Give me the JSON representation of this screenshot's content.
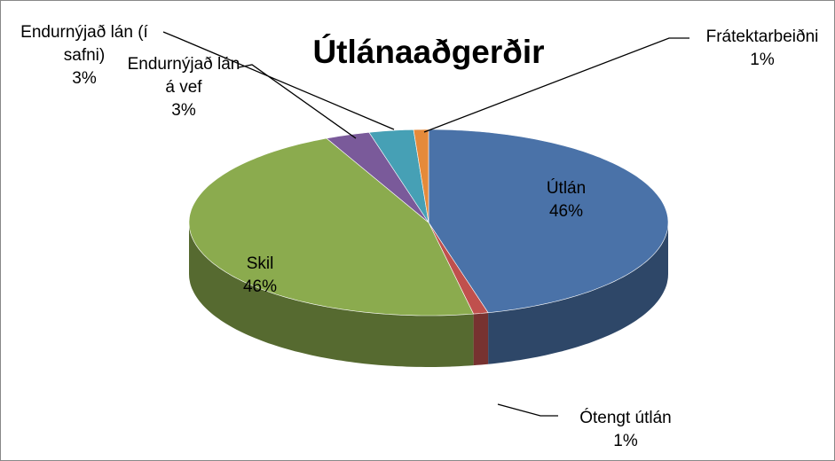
{
  "chart_data": {
    "type": "pie3d",
    "title": "Útlánaaðgerðir",
    "categories": [
      "Útlán",
      "Ótengt útlán",
      "Skil",
      "Endurnýjað lán á vef",
      "Endurnýjað lán (í safni)",
      "Frátektarbeiðni"
    ],
    "values": [
      46,
      1,
      46,
      3,
      3,
      1
    ],
    "value_labels": [
      "46%",
      "1%",
      "46%",
      "3%",
      "3%",
      "1%"
    ],
    "colors": [
      "#4a72a8",
      "#c0504d",
      "#8bab4e",
      "#7a5a9a",
      "#46a0b5",
      "#e58a3a"
    ]
  }
}
